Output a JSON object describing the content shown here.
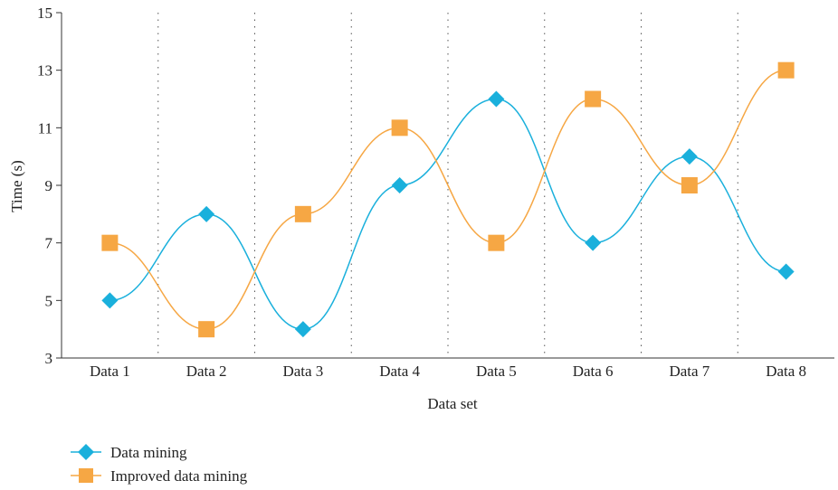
{
  "chart_data": {
    "type": "line",
    "categories": [
      "Data 1",
      "Data 2",
      "Data 3",
      "Data 4",
      "Data 5",
      "Data 6",
      "Data 7",
      "Data 8"
    ],
    "xlabel": "Data set",
    "ylabel": "Time (s)",
    "ylim": [
      3,
      15
    ],
    "yticks": [
      "3",
      "5",
      "7",
      "9",
      "11",
      "13",
      "15"
    ],
    "smooth": true,
    "vertical_grid": "dotted",
    "legend_position": "bottom-left",
    "series": [
      {
        "name": "Data mining",
        "values": [
          5,
          8,
          4,
          9,
          12,
          7,
          10,
          6
        ],
        "color": "#1ab0dc",
        "marker": "diamond"
      },
      {
        "name": "Improved data mining",
        "values": [
          7,
          4,
          8,
          11,
          7,
          12,
          9,
          13
        ],
        "color": "#f6a744",
        "marker": "square"
      }
    ]
  }
}
